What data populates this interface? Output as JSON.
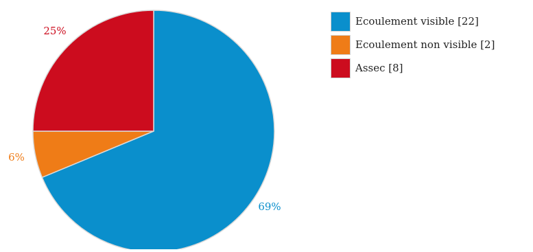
{
  "chart_data": {
    "type": "pie",
    "slices": [
      {
        "label": "Ecoulement visible [22]",
        "value": 22,
        "pct_label": "69%",
        "color": "#0a8fcc"
      },
      {
        "label": "Ecoulement non visible [2]",
        "value": 2,
        "pct_label": "6%",
        "color": "#ef7c17"
      },
      {
        "label": "Assec [8]",
        "value": 8,
        "pct_label": "25%",
        "color": "#cc0c1e"
      }
    ],
    "start": "12 o'clock",
    "direction": "clockwise",
    "legend_position": "top-right"
  }
}
